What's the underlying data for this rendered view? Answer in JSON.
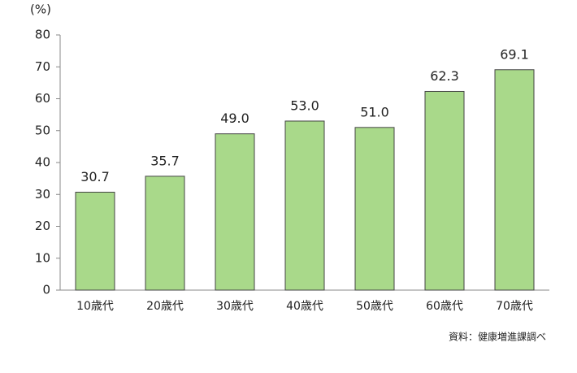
{
  "chart_data": {
    "type": "bar",
    "unit_label": "(%)",
    "source": "資料：健康増進課調べ",
    "categories": [
      "10歳代",
      "20歳代",
      "30歳代",
      "40歳代",
      "50歳代",
      "60歳代",
      "70歳代"
    ],
    "values": [
      30.7,
      35.7,
      49.0,
      53.0,
      51.0,
      62.3,
      69.1
    ],
    "value_labels": [
      "30.7",
      "35.7",
      "49.0",
      "53.0",
      "51.0",
      "62.3",
      "69.1"
    ],
    "color": "#a9d98a",
    "ylim": [
      0,
      80
    ],
    "yticks": [
      0,
      10,
      20,
      30,
      40,
      50,
      60,
      70,
      80
    ],
    "grid": false
  }
}
